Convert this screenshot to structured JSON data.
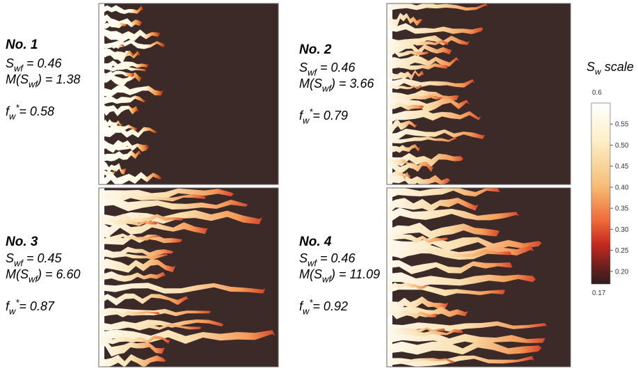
{
  "panels": [
    {
      "label": "No. 1",
      "lines": [
        [
          {
            "text": "S"
          },
          {
            "text": "wf",
            "style": "sub"
          },
          {
            "text": " = 0.46"
          }
        ],
        [
          {
            "text": "M(S"
          },
          {
            "text": "wf",
            "style": "sub"
          },
          {
            "text": ") = 1.38"
          }
        ],
        [
          {
            "text": "f"
          },
          {
            "text": "w",
            "style": "sub"
          },
          {
            "text": "*",
            "style": "sup"
          },
          {
            "text": "= 0.58"
          }
        ]
      ]
    },
    {
      "label": "No. 2",
      "lines": [
        [
          {
            "text": "S"
          },
          {
            "text": "wf",
            "style": "sub"
          },
          {
            "text": " = 0.46"
          }
        ],
        [
          {
            "text": "M(S"
          },
          {
            "text": "wf",
            "style": "sub"
          },
          {
            "text": ") = 3.66"
          }
        ],
        [
          {
            "text": "f"
          },
          {
            "text": "w",
            "style": "sub"
          },
          {
            "text": "*",
            "style": "sup"
          },
          {
            "text": "= 0.79"
          }
        ]
      ]
    },
    {
      "label": "No. 3",
      "lines": [
        [
          {
            "text": "S"
          },
          {
            "text": "wf",
            "style": "sub"
          },
          {
            "text": " = 0.45"
          }
        ],
        [
          {
            "text": "M(S"
          },
          {
            "text": "wf",
            "style": "sub"
          },
          {
            "text": ") = 6.60"
          }
        ],
        [
          {
            "text": "f"
          },
          {
            "text": "w",
            "style": "sub"
          },
          {
            "text": "*",
            "style": "sup"
          },
          {
            "text": "= 0.87"
          }
        ]
      ]
    },
    {
      "label": "No. 4",
      "lines": [
        [
          {
            "text": "S"
          },
          {
            "text": "wf",
            "style": "sub"
          },
          {
            "text": " = 0.46"
          }
        ],
        [
          {
            "text": "M(S"
          },
          {
            "text": "wf",
            "style": "sub"
          },
          {
            "text": ") = 11.09"
          }
        ],
        [
          {
            "text": "f"
          },
          {
            "text": "w",
            "style": "sub"
          },
          {
            "text": "*",
            "style": "sup"
          },
          {
            "text": "= 0.92"
          }
        ]
      ]
    }
  ],
  "colorbar": {
    "title": [
      {
        "text": "S"
      },
      {
        "text": "w",
        "style": "sub"
      },
      {
        "text": " scale"
      }
    ],
    "lim": [
      0.17,
      0.6
    ],
    "ticks": [
      0.55,
      {
        "value": 0.5,
        "label": "0.50"
      },
      0.45,
      {
        "value": 0.4,
        "label": "0.40"
      },
      0.35,
      {
        "value": 0.3,
        "label": "0.30"
      },
      0.25,
      {
        "value": 0.2,
        "label": "0.20"
      }
    ]
  }
}
